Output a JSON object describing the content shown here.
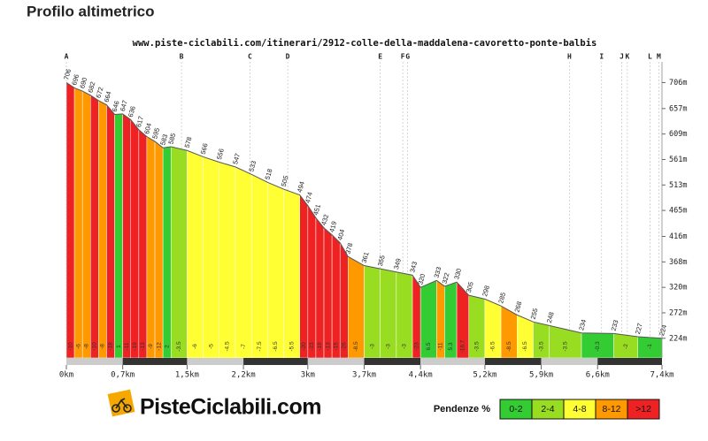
{
  "chart_data": {
    "type": "elevation-profile",
    "title": "Profilo altimetrico",
    "subtitle": "www.piste-ciclabili.com/itinerari/2912-colle-della-maddalena-cavoretto-ponte-balbis",
    "x": [
      0,
      0.1,
      0.2,
      0.3,
      0.4,
      0.5,
      0.6,
      0.7,
      0.8,
      0.9,
      1.0,
      1.1,
      1.2,
      1.3,
      1.5,
      1.7,
      1.9,
      2.1,
      2.3,
      2.5,
      2.7,
      2.9,
      3.0,
      3.1,
      3.2,
      3.3,
      3.4,
      3.5,
      3.7,
      3.9,
      4.1,
      4.3,
      4.4,
      4.6,
      4.7,
      4.85,
      5.0,
      5.2,
      5.4,
      5.6,
      5.8,
      6.0,
      6.4,
      6.8,
      7.1,
      7.4
    ],
    "values": [
      706,
      696,
      690,
      682,
      672,
      664,
      646,
      647,
      636,
      617,
      604,
      595,
      583,
      585,
      578,
      566,
      556,
      547,
      533,
      518,
      505,
      494,
      474,
      451,
      432,
      419,
      404,
      378,
      361,
      355,
      349,
      343,
      320,
      333,
      322,
      330,
      305,
      298,
      285,
      268,
      255,
      248,
      234,
      233,
      227,
      224
    ],
    "grades": [
      -10,
      -6,
      -8,
      -10,
      -8,
      -18,
      1,
      -11,
      -19,
      -13,
      -9,
      -12,
      2,
      -3.5,
      -6,
      -5,
      -4.5,
      -7,
      -7.5,
      -6.5,
      -5.5,
      -20,
      -23,
      -19,
      -13,
      -15,
      -26,
      -8.5,
      -3,
      -3,
      -3,
      -23,
      6.5,
      -11,
      5.3,
      -16.7,
      -3.5,
      -6.5,
      -8.5,
      -6.5,
      -3.5,
      -3.5,
      -0.3,
      -2,
      -1
    ],
    "grade_classes": [
      4,
      3,
      3,
      4,
      3,
      4,
      0,
      4,
      4,
      4,
      3,
      3,
      0,
      1,
      2,
      2,
      2,
      2,
      2,
      2,
      2,
      4,
      4,
      4,
      4,
      4,
      4,
      3,
      1,
      1,
      1,
      4,
      0,
      3,
      0,
      4,
      1,
      2,
      3,
      2,
      1,
      1,
      0,
      1,
      0
    ],
    "waypoints": [
      {
        "label": "A",
        "x": 0
      },
      {
        "label": "B",
        "x": 1.43
      },
      {
        "label": "C",
        "x": 2.28
      },
      {
        "label": "D",
        "x": 2.75
      },
      {
        "label": "E",
        "x": 3.9
      },
      {
        "label": "F",
        "x": 4.18
      },
      {
        "label": "G",
        "x": 4.24
      },
      {
        "label": "H",
        "x": 6.25
      },
      {
        "label": "I",
        "x": 6.65
      },
      {
        "label": "J",
        "x": 6.9
      },
      {
        "label": "K",
        "x": 6.97
      },
      {
        "label": "L",
        "x": 7.25
      },
      {
        "label": "M",
        "x": 7.36
      }
    ],
    "xlim": [
      0,
      7.4
    ],
    "ylim": [
      187,
      750
    ],
    "xticks": [
      {
        "value": 0,
        "label": "0km"
      },
      {
        "value": 0.7,
        "label": "0,7km"
      },
      {
        "value": 1.5,
        "label": "1,5km"
      },
      {
        "value": 2.2,
        "label": "2,2km"
      },
      {
        "value": 3,
        "label": "3km"
      },
      {
        "value": 3.7,
        "label": "3,7km"
      },
      {
        "value": 4.4,
        "label": "4,4km"
      },
      {
        "value": 5.2,
        "label": "5,2km"
      },
      {
        "value": 5.9,
        "label": "5,9km"
      },
      {
        "value": 6.6,
        "label": "6,6km"
      },
      {
        "value": 7.4,
        "label": "7,4km"
      }
    ],
    "yticks": [
      {
        "value": 224,
        "label": "224m"
      },
      {
        "value": 272,
        "label": "272m"
      },
      {
        "value": 320,
        "label": "320m"
      },
      {
        "value": 368,
        "label": "368m"
      },
      {
        "value": 416,
        "label": "416m"
      },
      {
        "value": 465,
        "label": "465m"
      },
      {
        "value": 513,
        "label": "513m"
      },
      {
        "value": 561,
        "label": "561m"
      },
      {
        "value": 609,
        "label": "609m"
      },
      {
        "value": 657,
        "label": "657m"
      },
      {
        "value": 706,
        "label": "706m"
      }
    ],
    "legend": {
      "title": "Pendenze %",
      "items": [
        {
          "label": "0-2",
          "color": "#33cc33"
        },
        {
          "label": "2-4",
          "color": "#99dd22"
        },
        {
          "label": "4-8",
          "color": "#ffff33"
        },
        {
          "label": "8-12",
          "color": "#ff9900"
        },
        {
          "label": ">12",
          "color": "#ee2222"
        }
      ]
    },
    "logo": "PisteCiclabili.com"
  }
}
